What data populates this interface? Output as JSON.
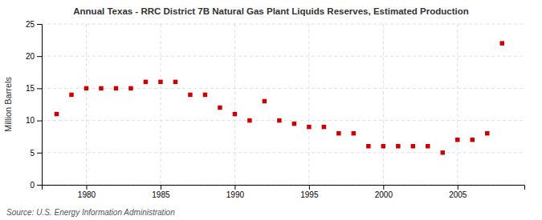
{
  "chart_data": {
    "type": "scatter",
    "title": "Annual Texas - RRC District 7B Natural Gas Plant Liquids Reserves, Estimated Production",
    "ylabel": "Million Barrels",
    "source": "Source: U.S. Energy Information Administration",
    "x": [
      1978,
      1979,
      1980,
      1981,
      1982,
      1983,
      1984,
      1985,
      1986,
      1987,
      1988,
      1989,
      1990,
      1991,
      1992,
      1993,
      1994,
      1995,
      1996,
      1997,
      1998,
      1999,
      2000,
      2001,
      2002,
      2003,
      2004,
      2005,
      2006,
      2007,
      2008
    ],
    "values": [
      11.0,
      14.0,
      15.0,
      15.0,
      15.0,
      15.0,
      16.0,
      16.0,
      16.0,
      14.0,
      14.0,
      12.0,
      11.0,
      10.0,
      13.0,
      10.0,
      9.5,
      9.0,
      9.0,
      8.0,
      8.0,
      6.0,
      6.0,
      6.0,
      6.0,
      6.0,
      5.0,
      7.0,
      7.0,
      8.0,
      22.0
    ],
    "color": "#cc0000",
    "marker": "square",
    "xlim": [
      1977,
      2009.5
    ],
    "ylim": [
      0,
      25
    ],
    "xticks": [
      1980,
      1985,
      1990,
      1995,
      2000,
      2005
    ],
    "yticks": [
      0,
      5,
      10,
      15,
      20,
      25
    ],
    "grid": true
  }
}
